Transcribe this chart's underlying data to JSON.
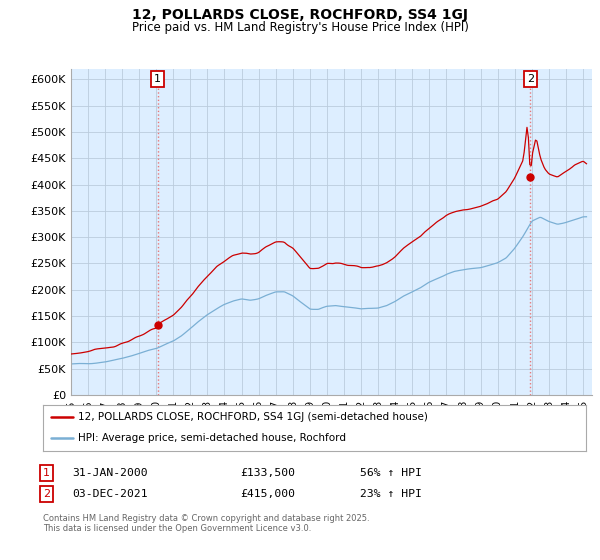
{
  "title": "12, POLLARDS CLOSE, ROCHFORD, SS4 1GJ",
  "subtitle": "Price paid vs. HM Land Registry's House Price Index (HPI)",
  "legend_line1": "12, POLLARDS CLOSE, ROCHFORD, SS4 1GJ (semi-detached house)",
  "legend_line2": "HPI: Average price, semi-detached house, Rochford",
  "annotation1_label": "1",
  "annotation1_date": "31-JAN-2000",
  "annotation1_price": "£133,500",
  "annotation1_hpi": "56% ↑ HPI",
  "annotation2_label": "2",
  "annotation2_date": "03-DEC-2021",
  "annotation2_price": "£415,000",
  "annotation2_hpi": "23% ↑ HPI",
  "footer": "Contains HM Land Registry data © Crown copyright and database right 2025.\nThis data is licensed under the Open Government Licence v3.0.",
  "price_color": "#cc0000",
  "hpi_color": "#7aafd4",
  "vline_color": "#e87878",
  "bg_plot": "#ddeeff",
  "annotation_color": "#cc0000",
  "bg_color": "#ffffff",
  "grid_color": "#bbccdd",
  "ylim": [
    0,
    620000
  ],
  "yticks": [
    0,
    50000,
    100000,
    150000,
    200000,
    250000,
    300000,
    350000,
    400000,
    450000,
    500000,
    550000,
    600000
  ],
  "ytick_labels": [
    "£0",
    "£50K",
    "£100K",
    "£150K",
    "£200K",
    "£250K",
    "£300K",
    "£350K",
    "£400K",
    "£450K",
    "£500K",
    "£550K",
    "£600K"
  ],
  "sale1_x": 2000.08,
  "sale1_y": 133500,
  "sale2_x": 2021.92,
  "sale2_y": 415000,
  "xmin": 1995,
  "xmax": 2025.5
}
